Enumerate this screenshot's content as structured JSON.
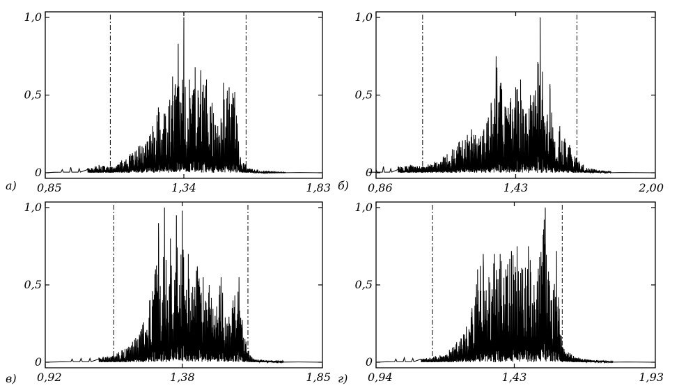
{
  "chart_data": [
    {
      "type": "line",
      "panel_label": "а)",
      "x_ticks": [
        "0,85",
        "1,34",
        "1,83"
      ],
      "x_tick_values": [
        0.85,
        1.34,
        1.83
      ],
      "y_ticks": [
        "0",
        "0,5",
        "1,0"
      ],
      "y_tick_values": [
        0,
        0.5,
        1.0
      ],
      "xlim": [
        0.85,
        1.83
      ],
      "ylim": [
        0,
        1.0
      ],
      "threshold_lines_x": [
        1.08,
        1.56
      ],
      "series": [
        {
          "x": [
            1.0,
            1.04,
            1.08,
            1.12,
            1.15,
            1.18,
            1.21,
            1.23,
            1.25,
            1.27,
            1.29,
            1.3,
            1.31,
            1.32,
            1.33,
            1.34,
            1.35,
            1.36,
            1.37,
            1.38,
            1.39,
            1.4,
            1.42,
            1.44,
            1.46,
            1.48,
            1.5,
            1.52,
            1.54,
            1.56,
            1.6
          ],
          "y": [
            0.03,
            0.05,
            0.04,
            0.08,
            0.12,
            0.17,
            0.2,
            0.3,
            0.42,
            0.38,
            0.47,
            0.62,
            0.57,
            0.83,
            0.45,
            1.0,
            0.2,
            0.6,
            0.5,
            0.68,
            0.53,
            0.66,
            0.6,
            0.45,
            0.3,
            0.58,
            0.55,
            0.52,
            0.1,
            0.05,
            0.01
          ]
        }
      ]
    },
    {
      "type": "line",
      "panel_label": "б)",
      "x_ticks": [
        "0,86",
        "1,43",
        "2,00"
      ],
      "x_tick_values": [
        0.86,
        1.43,
        2.0
      ],
      "y_ticks": [
        "0",
        "0,5",
        "1,0"
      ],
      "y_tick_values": [
        0,
        0.5,
        1.0
      ],
      "xlim": [
        0.86,
        2.0
      ],
      "ylim": [
        0,
        1.0
      ],
      "threshold_lines_x": [
        1.05,
        1.68
      ],
      "series": [
        {
          "x": [
            0.95,
            1.0,
            1.05,
            1.1,
            1.15,
            1.2,
            1.25,
            1.28,
            1.3,
            1.33,
            1.35,
            1.37,
            1.39,
            1.41,
            1.43,
            1.45,
            1.47,
            1.49,
            1.51,
            1.53,
            1.55,
            1.57,
            1.59,
            1.61,
            1.63,
            1.65,
            1.68,
            1.72
          ],
          "y": [
            0.04,
            0.05,
            0.04,
            0.07,
            0.12,
            0.2,
            0.28,
            0.22,
            0.28,
            0.45,
            0.75,
            0.58,
            0.42,
            0.48,
            0.55,
            0.6,
            0.38,
            0.5,
            0.53,
            1.0,
            0.3,
            0.57,
            0.2,
            0.3,
            0.22,
            0.18,
            0.1,
            0.03
          ]
        }
      ]
    },
    {
      "type": "line",
      "panel_label": "в)",
      "x_ticks": [
        "0,92",
        "1,38",
        "1,85"
      ],
      "x_tick_values": [
        0.92,
        1.38,
        1.85
      ],
      "y_ticks": [
        "0",
        "0,5",
        "1,0"
      ],
      "y_tick_values": [
        0,
        0.5,
        1.0
      ],
      "xlim": [
        0.92,
        1.85
      ],
      "ylim": [
        0,
        1.0
      ],
      "threshold_lines_x": [
        1.15,
        1.6
      ],
      "series": [
        {
          "x": [
            1.1,
            1.15,
            1.2,
            1.24,
            1.27,
            1.29,
            1.3,
            1.31,
            1.32,
            1.33,
            1.34,
            1.35,
            1.36,
            1.37,
            1.38,
            1.39,
            1.4,
            1.41,
            1.43,
            1.45,
            1.47,
            1.49,
            1.51,
            1.53,
            1.55,
            1.57,
            1.59,
            1.62
          ],
          "y": [
            0.03,
            0.05,
            0.1,
            0.2,
            0.4,
            0.6,
            0.9,
            0.2,
            1.0,
            0.4,
            0.8,
            0.3,
            0.95,
            0.5,
            0.98,
            0.4,
            0.7,
            0.45,
            0.62,
            0.55,
            0.5,
            0.3,
            0.55,
            0.25,
            0.4,
            0.55,
            0.15,
            0.02
          ]
        }
      ]
    },
    {
      "type": "line",
      "panel_label": "г)",
      "x_ticks": [
        "0,94",
        "1,43",
        "1,93"
      ],
      "x_tick_values": [
        0.94,
        1.43,
        1.93
      ],
      "y_ticks": [
        "0",
        "0,5",
        "1,0"
      ],
      "y_tick_values": [
        0,
        0.5,
        1.0
      ],
      "xlim": [
        0.94,
        1.93
      ],
      "ylim": [
        0,
        1.0
      ],
      "threshold_lines_x": [
        1.14,
        1.6
      ],
      "series": [
        {
          "x": [
            1.1,
            1.15,
            1.2,
            1.25,
            1.28,
            1.3,
            1.32,
            1.34,
            1.36,
            1.38,
            1.4,
            1.42,
            1.44,
            1.46,
            1.48,
            1.5,
            1.52,
            1.54,
            1.56,
            1.58,
            1.6,
            1.64,
            1.68
          ],
          "y": [
            0.02,
            0.04,
            0.08,
            0.18,
            0.35,
            0.6,
            0.7,
            0.55,
            0.7,
            0.7,
            0.6,
            0.72,
            0.75,
            0.6,
            0.75,
            0.5,
            0.68,
            1.0,
            0.4,
            0.72,
            0.1,
            0.04,
            0.02
          ]
        }
      ]
    }
  ]
}
